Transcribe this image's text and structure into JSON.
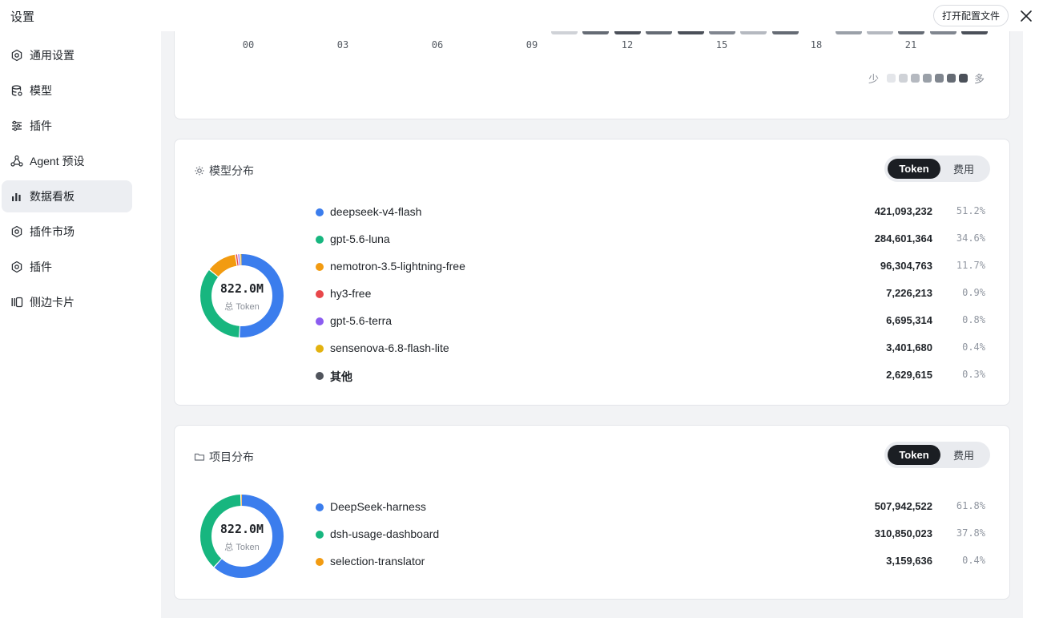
{
  "window": {
    "title": "设置",
    "open_config_label": "打开配置文件",
    "close_icon": "close-icon"
  },
  "sidebar": {
    "items": [
      {
        "label": "通用设置",
        "icon": "gear-icon",
        "active": false
      },
      {
        "label": "模型",
        "icon": "database-icon",
        "active": false
      },
      {
        "label": "插件",
        "icon": "sliders-icon",
        "active": false
      },
      {
        "label": "Agent 预设",
        "icon": "agent-icon",
        "active": false
      },
      {
        "label": "数据看板",
        "icon": "bar-chart-icon",
        "active": true
      },
      {
        "label": "插件市场",
        "icon": "gear-icon",
        "active": false
      },
      {
        "label": "插件",
        "icon": "gear-icon",
        "active": false
      },
      {
        "label": "侧边卡片",
        "icon": "cards-icon",
        "active": false
      }
    ]
  },
  "heatmap": {
    "hour_labels": [
      "00",
      "03",
      "06",
      "09",
      "12",
      "15",
      "18",
      "21"
    ],
    "legend_less": "少",
    "legend_more": "多",
    "legend_colors": [
      "#e4e6ea",
      "#cfd2d7",
      "#b5b9c0",
      "#9aa0a8",
      "#80868f",
      "#656b74",
      "#4b5059"
    ],
    "visible_cells": [
      {
        "hour": 9,
        "level": 1
      },
      {
        "hour": 10,
        "level": 5
      },
      {
        "hour": 11,
        "level": 6
      },
      {
        "hour": 12,
        "level": 5
      },
      {
        "hour": 13,
        "level": 6
      },
      {
        "hour": 14,
        "level": 4
      },
      {
        "hour": 15,
        "level": 2
      },
      {
        "hour": 16,
        "level": 5
      },
      {
        "hour": 18,
        "level": 3
      },
      {
        "hour": 19,
        "level": 2
      },
      {
        "hour": 20,
        "level": 5
      },
      {
        "hour": 21,
        "level": 4
      },
      {
        "hour": 22,
        "level": 6
      }
    ]
  },
  "model_distribution": {
    "title": "模型分布",
    "toggle": {
      "token": "Token",
      "cost": "费用",
      "selected": "Token"
    },
    "total": "822.0M",
    "total_label": "总 Token",
    "items": [
      {
        "name": "deepseek-v4-flash",
        "value": "421,093,232",
        "pct": "51.2%",
        "fraction": 0.512,
        "color": "#3b7ded"
      },
      {
        "name": "gpt-5.6-luna",
        "value": "284,601,364",
        "pct": "34.6%",
        "fraction": 0.346,
        "color": "#17b67f"
      },
      {
        "name": "nemotron-3.5-lightning-free",
        "value": "96,304,763",
        "pct": "11.7%",
        "fraction": 0.117,
        "color": "#f29b11"
      },
      {
        "name": "hy3-free",
        "value": "7,226,213",
        "pct": "0.9%",
        "fraction": 0.009,
        "color": "#e8474a"
      },
      {
        "name": "gpt-5.6-terra",
        "value": "6,695,314",
        "pct": "0.8%",
        "fraction": 0.008,
        "color": "#8b5cf0"
      },
      {
        "name": "sensenova-6.8-flash-lite",
        "value": "3,401,680",
        "pct": "0.4%",
        "fraction": 0.004,
        "color": "#e3b20f"
      },
      {
        "name": "其他",
        "value": "2,629,615",
        "pct": "0.3%",
        "fraction": 0.003,
        "color": "#50545c",
        "bold": true
      }
    ]
  },
  "project_distribution": {
    "title": "项目分布",
    "toggle": {
      "token": "Token",
      "cost": "费用",
      "selected": "Token"
    },
    "total": "822.0M",
    "total_label": "总 Token",
    "items": [
      {
        "name": "DeepSeek-harness",
        "value": "507,942,522",
        "pct": "61.8%",
        "fraction": 0.618,
        "color": "#3b7ded"
      },
      {
        "name": "dsh-usage-dashboard",
        "value": "310,850,023",
        "pct": "37.8%",
        "fraction": 0.378,
        "color": "#17b67f"
      },
      {
        "name": "selection-translator",
        "value": "3,159,636",
        "pct": "0.4%",
        "fraction": 0.004,
        "color": "#f29b11"
      }
    ]
  }
}
